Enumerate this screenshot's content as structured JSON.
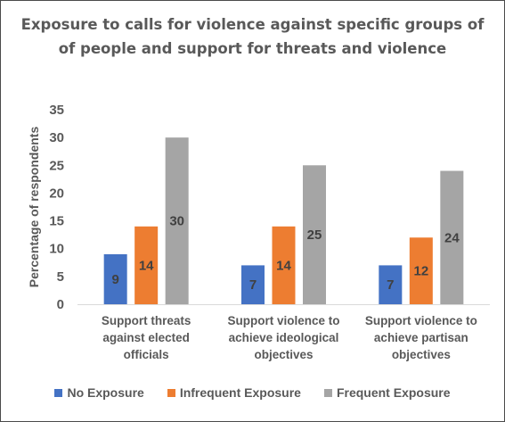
{
  "chart_data": {
    "type": "bar",
    "title": "Exposure to calls for violence against specific groups of of people and support for threats and violence",
    "xlabel": "",
    "ylabel": "Percentage of respondents",
    "ylim": [
      0,
      35
    ],
    "yticks": [
      0,
      5,
      10,
      15,
      20,
      25,
      30,
      35
    ],
    "grid": false,
    "legend": "bottom",
    "categories": [
      [
        "Support threats",
        "against elected",
        "officials"
      ],
      [
        "Support violence to",
        "achieve ideological",
        "objectives"
      ],
      [
        "Support violence to",
        "achieve partisan",
        "objectives"
      ]
    ],
    "series": [
      {
        "name": "No Exposure",
        "color": "#4472C4",
        "values": [
          9,
          7,
          7
        ]
      },
      {
        "name": "Infrequent Exposure",
        "color": "#ED7D31",
        "values": [
          14,
          14,
          12
        ]
      },
      {
        "name": "Frequent Exposure",
        "color": "#A5A5A5",
        "values": [
          30,
          25,
          24
        ]
      }
    ]
  }
}
